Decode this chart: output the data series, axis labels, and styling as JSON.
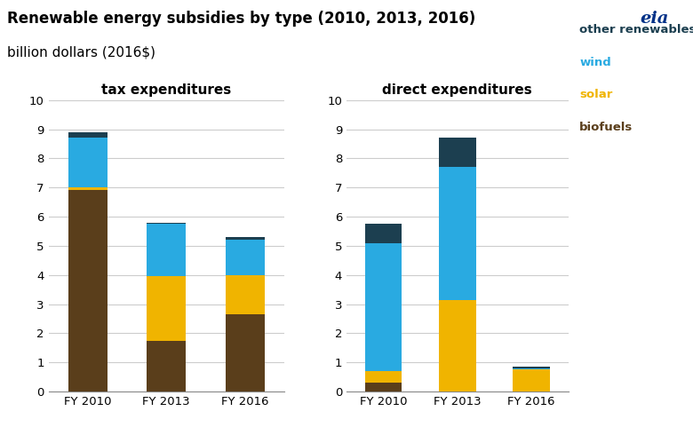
{
  "title_line1": "Renewable energy subsidies by type (2010, 2013, 2016)",
  "title_line2": "billion dollars (2016$)",
  "subtitle_left": "tax expenditures",
  "subtitle_right": "direct expenditures",
  "years": [
    "FY 2010",
    "FY 2013",
    "FY 2016"
  ],
  "tax": {
    "biofuels": [
      6.9,
      1.75,
      2.65
    ],
    "solar": [
      0.1,
      2.2,
      1.35
    ],
    "wind": [
      1.7,
      1.8,
      1.2
    ],
    "other": [
      0.2,
      0.05,
      0.1
    ]
  },
  "direct": {
    "biofuels": [
      0.3,
      0.0,
      0.0
    ],
    "solar": [
      0.4,
      3.15,
      0.75
    ],
    "wind": [
      4.4,
      4.55,
      0.05
    ],
    "other": [
      0.65,
      1.0,
      0.05
    ]
  },
  "colors": {
    "biofuels": "#5a3e1b",
    "solar": "#f0b400",
    "wind": "#29aae1",
    "other": "#1c3f50"
  },
  "ylim": [
    0,
    10
  ],
  "yticks": [
    0,
    1,
    2,
    3,
    4,
    5,
    6,
    7,
    8,
    9,
    10
  ],
  "background_color": "#ffffff",
  "grid_color": "#cccccc",
  "title_fontsize": 12,
  "subtitle_fontsize": 11,
  "tick_fontsize": 9.5,
  "legend_labels": [
    "other renewables",
    "wind",
    "solar",
    "biofuels"
  ],
  "legend_text_colors": [
    "#1c3f50",
    "#29aae1",
    "#f0b400",
    "#5a3e1b"
  ]
}
